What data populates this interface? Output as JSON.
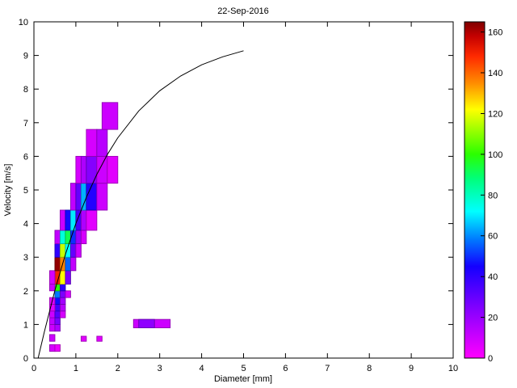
{
  "figure": {
    "title": "22-Sep-2016",
    "xlabel": "Diameter [mm]",
    "ylabel": "Velocity [m/s]"
  },
  "chart_data": {
    "type": "heatmap",
    "title": "22-Sep-2016",
    "xlabel": "Diameter [mm]",
    "ylabel": "Velocity [m/s]",
    "xlim": [
      0,
      10
    ],
    "ylim": [
      0,
      10
    ],
    "xticks": [
      0,
      1,
      2,
      3,
      4,
      5,
      6,
      7,
      8,
      9,
      10
    ],
    "yticks": [
      0,
      1,
      2,
      3,
      4,
      5,
      6,
      7,
      8,
      9,
      10
    ],
    "grid": false,
    "legend": "none",
    "colors": {
      "curve": "#000000",
      "axis": "#000000",
      "background": "#ffffff"
    },
    "colorbar": {
      "position": "right",
      "ticks": [
        0,
        20,
        40,
        60,
        80,
        100,
        120,
        140,
        160
      ],
      "clim": [
        0,
        165
      ]
    },
    "colormap_stops": [
      [
        0,
        "#ff00ff"
      ],
      [
        25,
        "#8000ff"
      ],
      [
        45,
        "#1400ff"
      ],
      [
        58,
        "#0077ff"
      ],
      [
        72,
        "#00ffff"
      ],
      [
        88,
        "#00ff7b"
      ],
      [
        100,
        "#2bff00"
      ],
      [
        112,
        "#9dff00"
      ],
      [
        122,
        "#ffff00"
      ],
      [
        135,
        "#ff8c00"
      ],
      [
        148,
        "#ff2a00"
      ],
      [
        158,
        "#c40000"
      ],
      [
        165,
        "#7f0000"
      ]
    ],
    "cells": [
      [
        0.375,
        0.2,
        0.125,
        0.2,
        8
      ],
      [
        0.5,
        0.2,
        0.125,
        0.2,
        4
      ],
      [
        0.375,
        0.5,
        0.125,
        0.2,
        10
      ],
      [
        1.125,
        0.5,
        0.125,
        0.15,
        6
      ],
      [
        1.5,
        0.5,
        0.125,
        0.15,
        6
      ],
      [
        2.375,
        0.9,
        0.875,
        0.25,
        10
      ],
      [
        2.5,
        0.9,
        0.375,
        0.25,
        22
      ],
      [
        0.375,
        0.8,
        0.125,
        0.2,
        10
      ],
      [
        0.5,
        0.8,
        0.125,
        0.2,
        16
      ],
      [
        0.375,
        1.0,
        0.125,
        0.2,
        12
      ],
      [
        0.5,
        1.0,
        0.125,
        0.2,
        26
      ],
      [
        0.375,
        1.2,
        0.125,
        0.2,
        10
      ],
      [
        0.5,
        1.2,
        0.125,
        0.2,
        32
      ],
      [
        0.625,
        1.2,
        0.125,
        0.2,
        8
      ],
      [
        0.5,
        1.4,
        0.125,
        0.2,
        36
      ],
      [
        0.625,
        1.4,
        0.125,
        0.2,
        14
      ],
      [
        0.375,
        1.4,
        0.125,
        0.2,
        6
      ],
      [
        0.5,
        1.6,
        0.125,
        0.2,
        46
      ],
      [
        0.625,
        1.6,
        0.125,
        0.2,
        18
      ],
      [
        0.375,
        1.6,
        0.125,
        0.2,
        6
      ],
      [
        0.5,
        1.8,
        0.125,
        0.2,
        58
      ],
      [
        0.625,
        1.8,
        0.125,
        0.2,
        26
      ],
      [
        0.75,
        1.8,
        0.125,
        0.2,
        8
      ],
      [
        0.5,
        2.0,
        0.125,
        0.2,
        100
      ],
      [
        0.625,
        2.0,
        0.125,
        0.2,
        40
      ],
      [
        0.375,
        2.0,
        0.125,
        0.2,
        10
      ],
      [
        0.5,
        2.2,
        0.125,
        0.4,
        150
      ],
      [
        0.625,
        2.2,
        0.125,
        0.4,
        122
      ],
      [
        0.75,
        2.2,
        0.125,
        0.4,
        26
      ],
      [
        0.375,
        2.2,
        0.125,
        0.4,
        8
      ],
      [
        0.5,
        2.6,
        0.125,
        0.4,
        163
      ],
      [
        0.625,
        2.6,
        0.125,
        0.4,
        136
      ],
      [
        0.75,
        2.6,
        0.125,
        0.4,
        56
      ],
      [
        0.875,
        2.6,
        0.125,
        0.4,
        12
      ],
      [
        0.5,
        3.0,
        0.125,
        0.4,
        40
      ],
      [
        0.625,
        3.0,
        0.125,
        0.4,
        116
      ],
      [
        0.75,
        3.0,
        0.125,
        0.4,
        72
      ],
      [
        0.875,
        3.0,
        0.125,
        0.4,
        30
      ],
      [
        1.0,
        3.0,
        0.125,
        0.4,
        10
      ],
      [
        0.5,
        3.4,
        0.125,
        0.4,
        12
      ],
      [
        0.625,
        3.4,
        0.125,
        0.4,
        76
      ],
      [
        0.75,
        3.4,
        0.125,
        0.4,
        92
      ],
      [
        0.875,
        3.4,
        0.125,
        0.4,
        50
      ],
      [
        1.0,
        3.4,
        0.125,
        0.4,
        20
      ],
      [
        1.125,
        3.4,
        0.125,
        0.4,
        8
      ],
      [
        0.625,
        3.8,
        0.125,
        0.6,
        10
      ],
      [
        0.75,
        3.8,
        0.125,
        0.6,
        46
      ],
      [
        0.875,
        3.8,
        0.125,
        0.6,
        70
      ],
      [
        1.0,
        3.8,
        0.125,
        0.6,
        36
      ],
      [
        1.125,
        3.8,
        0.125,
        0.6,
        16
      ],
      [
        1.25,
        3.8,
        0.25,
        0.6,
        6
      ],
      [
        0.875,
        4.4,
        0.125,
        0.8,
        12
      ],
      [
        1.0,
        4.4,
        0.125,
        0.8,
        30
      ],
      [
        1.125,
        4.4,
        0.125,
        0.8,
        64
      ],
      [
        1.25,
        4.4,
        0.25,
        0.8,
        42
      ],
      [
        1.5,
        4.4,
        0.25,
        0.8,
        10
      ],
      [
        1.0,
        5.2,
        0.125,
        0.8,
        8
      ],
      [
        1.125,
        5.2,
        0.125,
        0.8,
        16
      ],
      [
        1.25,
        5.2,
        0.25,
        0.8,
        24
      ],
      [
        1.5,
        5.2,
        0.25,
        0.8,
        10
      ],
      [
        1.75,
        5.2,
        0.25,
        0.8,
        6
      ],
      [
        1.25,
        6.0,
        0.25,
        0.8,
        8
      ],
      [
        1.5,
        6.0,
        0.25,
        0.8,
        14
      ],
      [
        1.625,
        6.8,
        0.375,
        0.8,
        10
      ]
    ],
    "curve": {
      "color": "#000000",
      "points": [
        [
          0.1,
          0.0
        ],
        [
          0.25,
          0.79
        ],
        [
          0.5,
          2.02
        ],
        [
          0.75,
          3.08
        ],
        [
          1.0,
          4.0
        ],
        [
          1.25,
          4.78
        ],
        [
          1.5,
          5.46
        ],
        [
          1.75,
          6.05
        ],
        [
          2.0,
          6.55
        ],
        [
          2.5,
          7.35
        ],
        [
          3.0,
          7.95
        ],
        [
          3.5,
          8.39
        ],
        [
          4.0,
          8.72
        ],
        [
          4.5,
          8.96
        ],
        [
          5.0,
          9.14
        ]
      ]
    }
  }
}
